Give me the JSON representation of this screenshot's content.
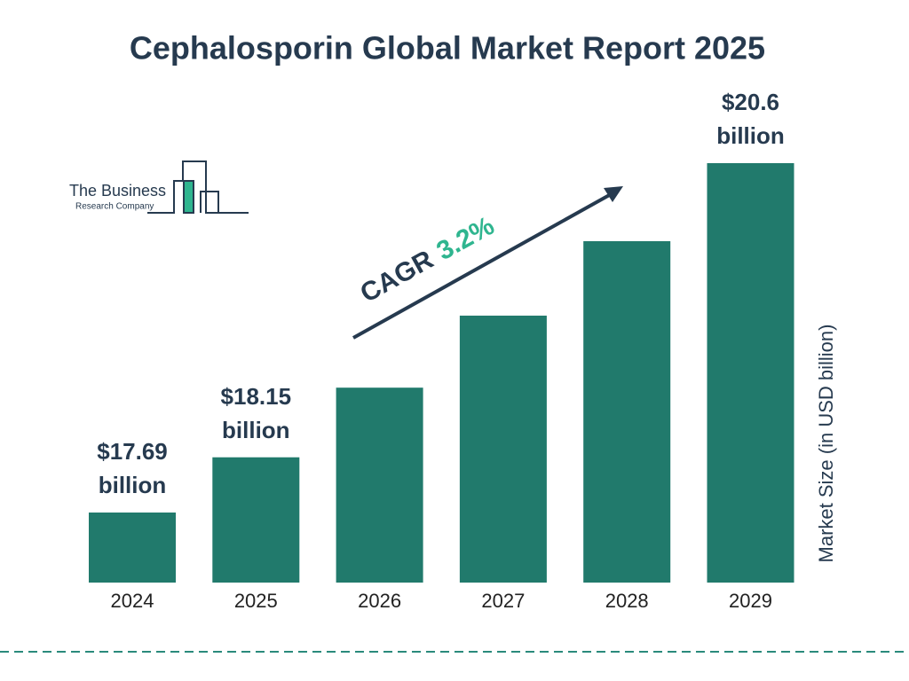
{
  "logo": {
    "name": "The Business",
    "subtitle": "Research Company"
  },
  "chart_data": {
    "type": "bar",
    "title": "Cephalosporin Global Market Report 2025",
    "categories": [
      "2024",
      "2025",
      "2026",
      "2027",
      "2028",
      "2029"
    ],
    "values": [
      17.69,
      18.15,
      18.73,
      19.33,
      19.95,
      20.6
    ],
    "value_labels": [
      "$17.69 billion",
      "$18.15 billion",
      null,
      null,
      null,
      "$20.6 billion"
    ],
    "color": "#217a6c",
    "y_axis_label": "Market Size (in USD billion)",
    "cagr_label": "CAGR",
    "cagr_value": "3.2%"
  }
}
